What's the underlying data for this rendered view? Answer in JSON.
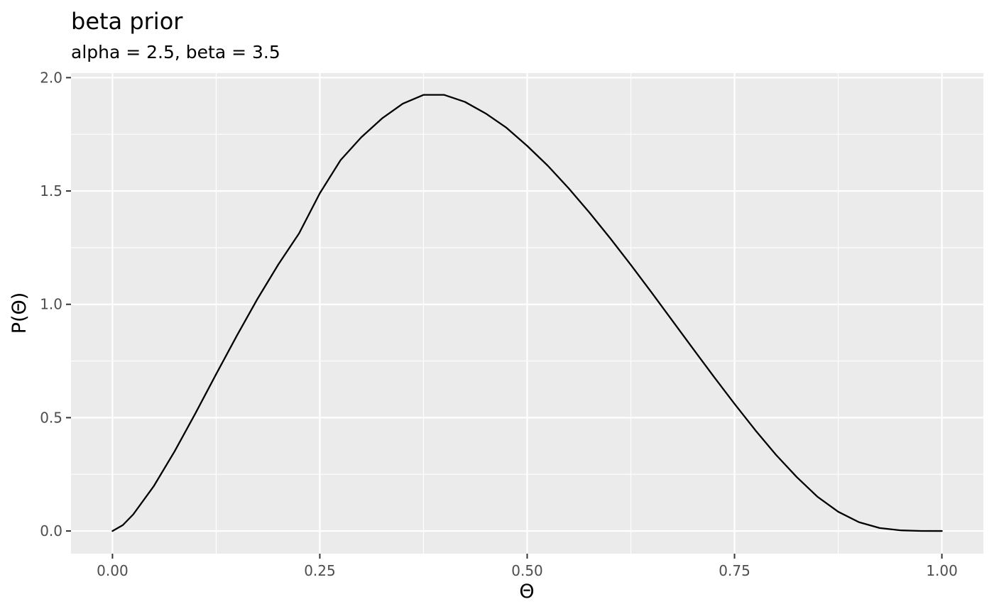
{
  "chart_data": {
    "type": "line",
    "title": "beta prior",
    "subtitle": "alpha = 2.5, beta = 3.5",
    "xlabel": "Θ",
    "ylabel": "P(Θ)",
    "distribution": "beta",
    "alpha": 2.5,
    "beta": 3.5,
    "xlim": [
      -0.05,
      1.05
    ],
    "ylim": [
      -0.1,
      2.02
    ],
    "x_ticks": [
      0,
      0.25,
      0.5,
      0.75,
      1
    ],
    "x_tick_labels": [
      "0.00",
      "0.25",
      "0.50",
      "0.75",
      "1.00"
    ],
    "y_ticks": [
      0,
      0.5,
      1,
      1.5,
      2
    ],
    "y_tick_labels": [
      "0.0",
      "0.5",
      "1.0",
      "1.5",
      "2.0"
    ],
    "grid": true,
    "series": [
      {
        "x": [
          0,
          0.0125,
          0.025,
          0.05,
          0.075,
          0.1,
          0.125,
          0.15,
          0.175,
          0.2,
          0.225,
          0.25,
          0.275,
          0.3,
          0.325,
          0.35,
          0.375,
          0.4,
          0.425,
          0.45,
          0.475,
          0.5,
          0.525,
          0.55,
          0.575,
          0.6,
          0.625,
          0.65,
          0.675,
          0.7,
          0.725,
          0.75,
          0.775,
          0.8,
          0.825,
          0.85,
          0.875,
          0.9,
          0.925,
          0.95,
          0.975,
          1
        ],
        "y": [
          0,
          0.026,
          0.073,
          0.199,
          0.352,
          0.519,
          0.692,
          0.862,
          1.025,
          1.176,
          1.313,
          1.49,
          1.636,
          1.737,
          1.82,
          1.885,
          1.924,
          1.924,
          1.893,
          1.842,
          1.779,
          1.699,
          1.611,
          1.512,
          1.405,
          1.292,
          1.174,
          1.052,
          0.928,
          0.804,
          0.681,
          0.561,
          0.445,
          0.336,
          0.238,
          0.151,
          0.085,
          0.039,
          0.013,
          0.003,
          0.0003,
          0
        ]
      }
    ]
  }
}
